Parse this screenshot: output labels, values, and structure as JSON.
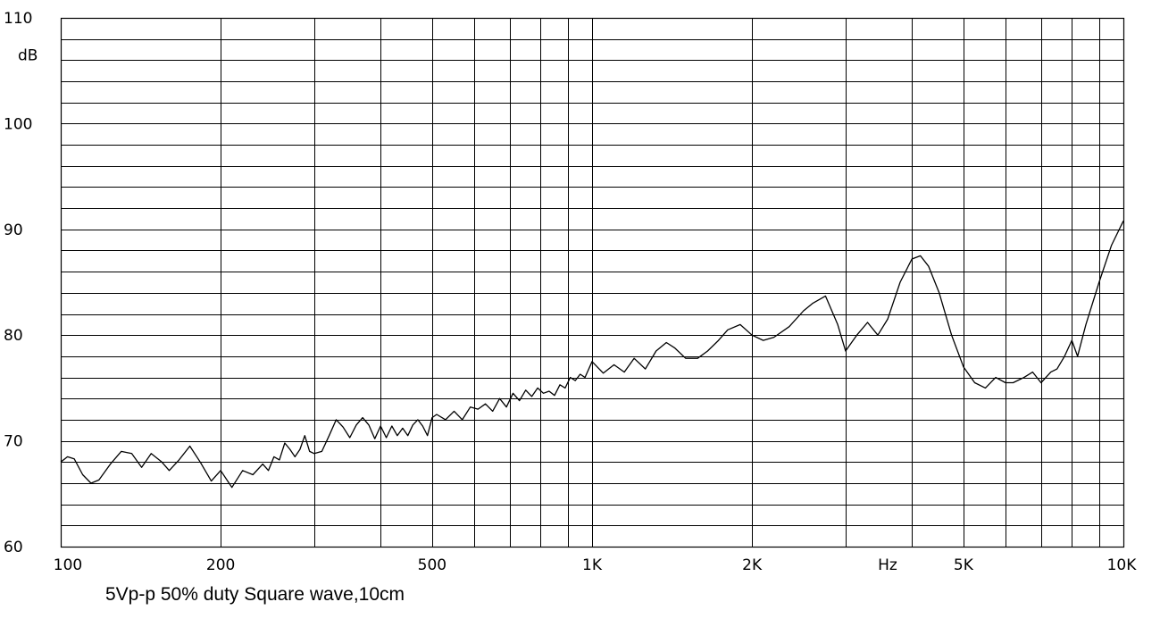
{
  "caption": "5Vp-p 50% duty Square wave,10cm",
  "chart_data": {
    "type": "line",
    "title": "",
    "xlabel": "Hz",
    "ylabel": "dB",
    "x_scale": "log",
    "xlim": [
      100,
      10000
    ],
    "ylim": [
      60,
      110
    ],
    "grid": true,
    "legend": "none",
    "line_color": "#000000",
    "grid_color": "#000000",
    "x_minor_ticks": [
      100,
      200,
      300,
      400,
      500,
      600,
      700,
      800,
      900,
      1000,
      2000,
      3000,
      4000,
      5000,
      6000,
      7000,
      8000,
      9000,
      10000
    ],
    "y_minor_step": 2,
    "x_tick_labels": [
      {
        "value": 100,
        "label": "100"
      },
      {
        "value": 200,
        "label": "200"
      },
      {
        "value": 500,
        "label": "500"
      },
      {
        "value": 1000,
        "label": "1K"
      },
      {
        "value": 2000,
        "label": "2K"
      },
      {
        "value": 3600,
        "label": "Hz"
      },
      {
        "value": 5000,
        "label": "5K"
      },
      {
        "value": 10000,
        "label": "10K"
      }
    ],
    "y_tick_labels": [
      {
        "value": 110,
        "label": "110"
      },
      {
        "value": 100,
        "label": "100"
      },
      {
        "value": 90,
        "label": "90"
      },
      {
        "value": 80,
        "label": "80"
      },
      {
        "value": 70,
        "label": "70"
      },
      {
        "value": 60,
        "label": "60"
      }
    ],
    "y_unit_label": {
      "value": 106.5,
      "label": "dB"
    },
    "series": [
      {
        "x": [
          100,
          103,
          106,
          110,
          114,
          118,
          124,
          130,
          136,
          142,
          148,
          155,
          160,
          167,
          175,
          183,
          192,
          200,
          210,
          220,
          230,
          240,
          246,
          252,
          258,
          264,
          270,
          276,
          282,
          288,
          294,
          300,
          310,
          320,
          330,
          340,
          350,
          360,
          370,
          380,
          390,
          400,
          410,
          420,
          430,
          440,
          450,
          460,
          470,
          480,
          490,
          500,
          510,
          530,
          550,
          570,
          590,
          610,
          630,
          650,
          670,
          690,
          710,
          730,
          750,
          770,
          790,
          810,
          830,
          850,
          870,
          890,
          910,
          930,
          950,
          970,
          1000,
          1050,
          1100,
          1150,
          1200,
          1260,
          1320,
          1380,
          1430,
          1500,
          1580,
          1650,
          1730,
          1800,
          1900,
          2000,
          2100,
          2200,
          2350,
          2500,
          2600,
          2750,
          2900,
          3000,
          3150,
          3300,
          3450,
          3600,
          3800,
          4000,
          4150,
          4300,
          4500,
          4750,
          5000,
          5250,
          5500,
          5750,
          6000,
          6200,
          6500,
          6750,
          7000,
          7300,
          7500,
          7750,
          8000,
          8200,
          8500,
          9000,
          9500,
          10000
        ],
        "y": [
          68.0,
          68.5,
          68.3,
          66.8,
          66.0,
          66.3,
          67.8,
          69.0,
          68.8,
          67.5,
          68.8,
          68.0,
          67.2,
          68.2,
          69.5,
          68.0,
          66.2,
          67.2,
          65.6,
          67.2,
          66.8,
          67.8,
          67.2,
          68.5,
          68.2,
          69.8,
          69.2,
          68.5,
          69.2,
          70.5,
          69.0,
          68.8,
          69.0,
          70.5,
          72.0,
          71.3,
          70.3,
          71.5,
          72.2,
          71.5,
          70.2,
          71.4,
          70.3,
          71.4,
          70.5,
          71.2,
          70.5,
          71.5,
          72.0,
          71.4,
          70.5,
          72.2,
          72.5,
          72.0,
          72.8,
          72.0,
          73.2,
          73.0,
          73.5,
          72.8,
          74.0,
          73.2,
          74.5,
          73.8,
          74.8,
          74.2,
          75.0,
          74.5,
          74.7,
          74.3,
          75.3,
          75.0,
          76.0,
          75.7,
          76.3,
          76.0,
          77.5,
          76.4,
          77.2,
          76.5,
          77.8,
          76.8,
          78.5,
          79.3,
          78.8,
          77.8,
          77.8,
          78.5,
          79.5,
          80.5,
          81.0,
          80.0,
          79.5,
          79.8,
          80.8,
          82.3,
          83.0,
          83.7,
          81.0,
          78.5,
          80.0,
          81.2,
          80.0,
          81.5,
          85.0,
          87.2,
          87.5,
          86.5,
          84.0,
          80.0,
          77.0,
          75.5,
          75.0,
          76.0,
          75.5,
          75.5,
          76.0,
          76.5,
          75.5,
          76.5,
          76.8,
          78.0,
          79.5,
          78.0,
          81.0,
          85.0,
          88.5,
          90.8
        ]
      }
    ]
  }
}
